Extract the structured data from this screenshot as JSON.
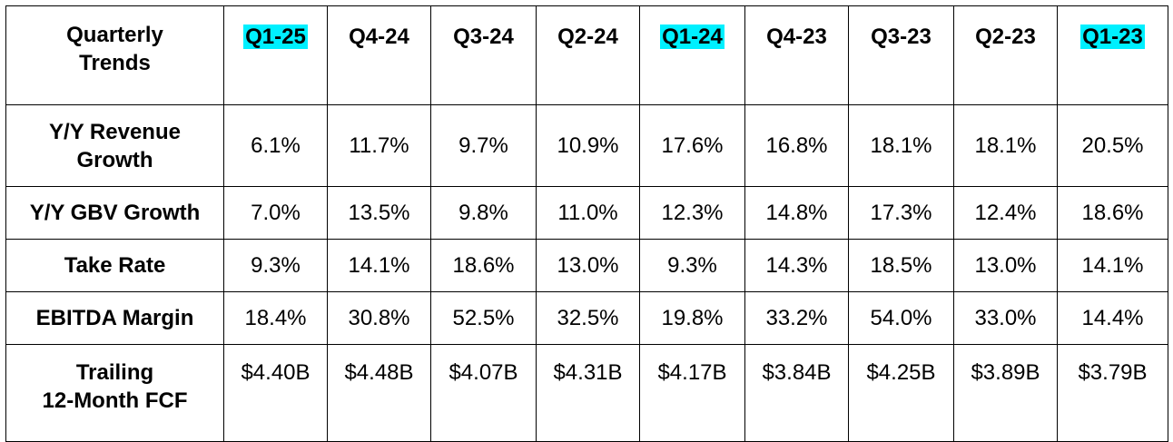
{
  "chart_data": {
    "type": "table",
    "header_label": "Quarterly\nTrends",
    "highlight_color": "#00f0ff",
    "columns": [
      {
        "label": "Q1-25",
        "highlighted": true
      },
      {
        "label": "Q4-24",
        "highlighted": false
      },
      {
        "label": "Q3-24",
        "highlighted": false
      },
      {
        "label": "Q2-24",
        "highlighted": false
      },
      {
        "label": "Q1-24",
        "highlighted": true
      },
      {
        "label": "Q4-23",
        "highlighted": false
      },
      {
        "label": "Q3-23",
        "highlighted": false
      },
      {
        "label": "Q2-23",
        "highlighted": false
      },
      {
        "label": "Q1-23",
        "highlighted": true
      }
    ],
    "rows": [
      {
        "label": "Y/Y Revenue\nGrowth",
        "values": [
          "6.1%",
          "11.7%",
          "9.7%",
          "10.9%",
          "17.6%",
          "16.8%",
          "18.1%",
          "18.1%",
          "20.5%"
        ]
      },
      {
        "label": "Y/Y GBV Growth",
        "values": [
          "7.0%",
          "13.5%",
          "9.8%",
          "11.0%",
          "12.3%",
          "14.8%",
          "17.3%",
          "12.4%",
          "18.6%"
        ]
      },
      {
        "label": "Take Rate",
        "values": [
          "9.3%",
          "14.1%",
          "18.6%",
          "13.0%",
          "9.3%",
          "14.3%",
          "18.5%",
          "13.0%",
          "14.1%"
        ]
      },
      {
        "label": "EBITDA Margin",
        "values": [
          "18.4%",
          "30.8%",
          "52.5%",
          "32.5%",
          "19.8%",
          "33.2%",
          "54.0%",
          "33.0%",
          "14.4%"
        ]
      },
      {
        "label": "Trailing\n12-Month FCF",
        "values": [
          "$4.40B",
          "$4.48B",
          "$4.07B",
          "$4.31B",
          "$4.17B",
          "$3.84B",
          "$4.25B",
          "$3.89B",
          "$3.79B"
        ]
      }
    ]
  }
}
